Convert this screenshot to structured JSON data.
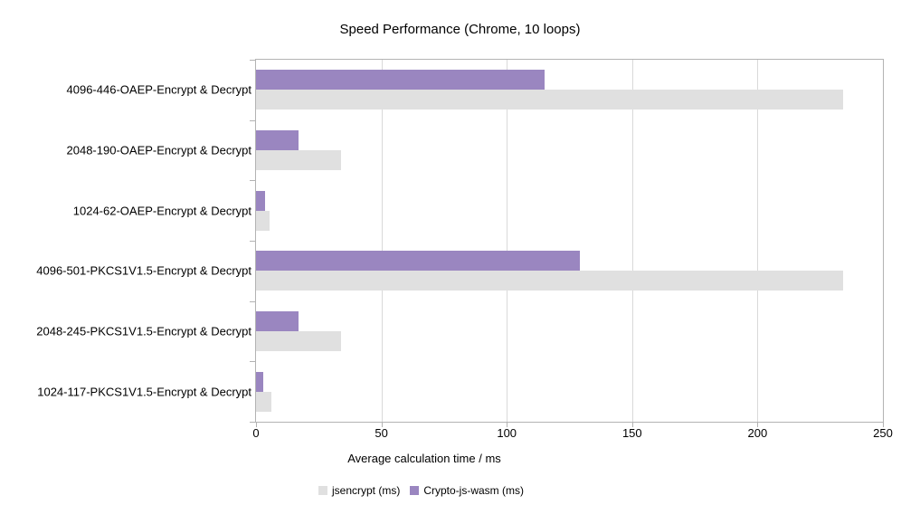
{
  "chart_data": {
    "type": "bar",
    "orientation": "horizontal",
    "title": "Speed Performance (Chrome, 10 loops)",
    "categories": [
      "4096-446-OAEP-Encrypt & Decrypt",
      "2048-190-OAEP-Encrypt & Decrypt",
      "1024-62-OAEP-Encrypt & Decrypt",
      "4096-501-PKCS1V1.5-Encrypt & Decrypt",
      "2048-245-PKCS1V1.5-Encrypt & Decrypt",
      "1024-117-PKCS1V1.5-Encrypt & Decrypt"
    ],
    "series": [
      {
        "name": "jsencrypt (ms)",
        "color": "#e0e0e0",
        "values": [
          234,
          34,
          5.5,
          234,
          34,
          6
        ]
      },
      {
        "name": "Crypto-js-wasm (ms)",
        "color": "#9a86c0",
        "values": [
          115,
          17,
          3.5,
          129,
          17,
          3
        ]
      }
    ],
    "bar_order_within_group_top_to_bottom": [
      "Crypto-js-wasm (ms)",
      "jsencrypt (ms)"
    ],
    "xlabel": "Average calculation time / ms",
    "xlim": [
      0,
      250
    ],
    "xticks": [
      0,
      50,
      100,
      150,
      200,
      250
    ],
    "grid": "vertical-only",
    "legend_position": "bottom"
  },
  "colors": {
    "background": "#ffffff",
    "plot_border": "#b3b3b3",
    "gridline": "#d9d9d9",
    "tick": "#b3b3b3",
    "text": "#000000"
  }
}
